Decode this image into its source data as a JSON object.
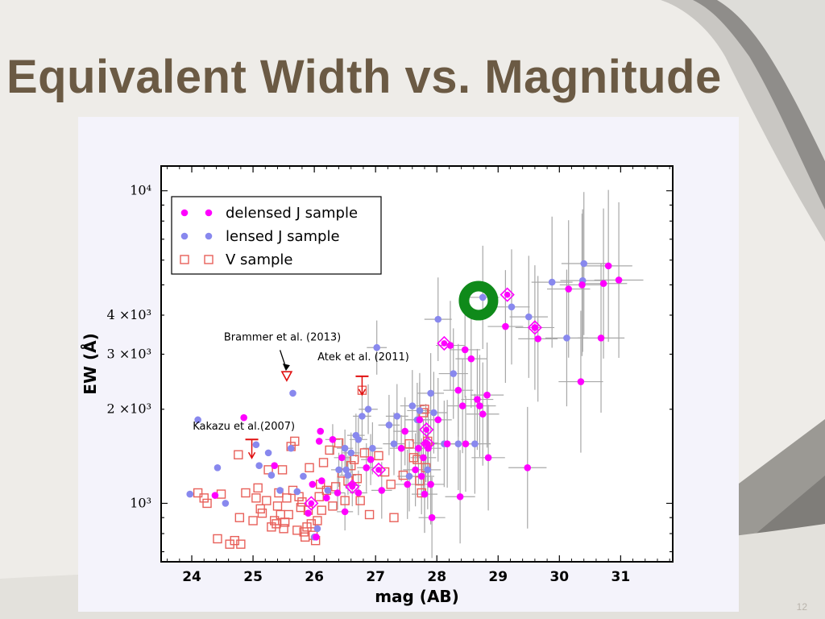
{
  "slide": {
    "title": "Equivalent Width vs. Magnitude",
    "number": "12"
  },
  "colors": {
    "title": "#6b5a44",
    "delensed": "#ff00ff",
    "lensed": "#8888ee",
    "vsample": "#e8605a",
    "errorbar": "#a8a8a8",
    "highlight_ring": "#0f8a1a",
    "limit_arrow": "#e01010",
    "panel": "#f4f3fb",
    "slide_bg": "#eeece8"
  },
  "chart_data": {
    "type": "scatter",
    "xlabel": "mag (AB)",
    "ylabel": "EW (Å)",
    "xlim": [
      23.5,
      31.85
    ],
    "ylim": [
      650,
      12000
    ],
    "yscale": "log",
    "xticks": [
      24,
      25,
      26,
      27,
      28,
      29,
      30,
      31
    ],
    "yticks": [
      {
        "value": 1000,
        "label": "10³"
      },
      {
        "value": 2000,
        "label": "2 ×10³"
      },
      {
        "value": 3000,
        "label": "3 ×10³"
      },
      {
        "value": 4000,
        "label": "4 ×10³"
      },
      {
        "value": 10000,
        "label": "10⁴"
      }
    ],
    "legend": {
      "position": "top-left",
      "entries": [
        "delensed J sample",
        "lensed J sample",
        "V sample"
      ]
    },
    "series": [
      {
        "name": "delensed J sample",
        "marker": "filled-circle",
        "points": [
          [
            24.38,
            1060
          ],
          [
            24.85,
            1880
          ],
          [
            25.35,
            1320
          ],
          [
            25.9,
            930
          ],
          [
            25.97,
            1150
          ],
          [
            26.03,
            780
          ],
          [
            26.08,
            1580
          ],
          [
            26.1,
            1700
          ],
          [
            26.12,
            1180
          ],
          [
            26.2,
            1040
          ],
          [
            26.3,
            1600
          ],
          [
            26.38,
            1080
          ],
          [
            26.45,
            1400
          ],
          [
            26.5,
            940
          ],
          [
            26.62,
            1140
          ],
          [
            26.72,
            1080
          ],
          [
            26.85,
            1300
          ],
          [
            26.92,
            1380
          ],
          [
            27.1,
            1100
          ],
          [
            27.42,
            1500
          ],
          [
            27.48,
            1700
          ],
          [
            27.52,
            1150
          ],
          [
            27.65,
            1280
          ],
          [
            27.7,
            1500
          ],
          [
            27.72,
            1850
          ],
          [
            27.75,
            1220
          ],
          [
            27.78,
            1400
          ],
          [
            27.8,
            1070
          ],
          [
            27.82,
            1560
          ],
          [
            27.86,
            1500
          ],
          [
            27.9,
            1150
          ],
          [
            27.92,
            900
          ],
          [
            28.02,
            1850
          ],
          [
            28.17,
            1550
          ],
          [
            28.22,
            3200
          ],
          [
            28.35,
            2300
          ],
          [
            28.38,
            1050
          ],
          [
            28.42,
            2050
          ],
          [
            28.46,
            3100
          ],
          [
            28.47,
            1550
          ],
          [
            28.56,
            2900
          ],
          [
            28.66,
            2150
          ],
          [
            28.7,
            2050
          ],
          [
            28.75,
            1930
          ],
          [
            28.82,
            2220
          ],
          [
            28.84,
            1400
          ],
          [
            29.12,
            3680
          ],
          [
            29.6,
            3650
          ],
          [
            29.65,
            3360
          ],
          [
            29.48,
            1300
          ],
          [
            30.15,
            4850
          ],
          [
            30.35,
            2450
          ],
          [
            30.37,
            5000
          ],
          [
            30.68,
            3380
          ],
          [
            30.72,
            5050
          ],
          [
            30.8,
            5750
          ],
          [
            30.97,
            5180
          ]
        ]
      },
      {
        "name": "lensed J sample",
        "marker": "filled-circle",
        "points": [
          [
            23.97,
            1070
          ],
          [
            24.1,
            1850
          ],
          [
            24.42,
            1300
          ],
          [
            24.55,
            1000
          ],
          [
            25.05,
            1540
          ],
          [
            25.1,
            1320
          ],
          [
            25.25,
            1450
          ],
          [
            25.3,
            1230
          ],
          [
            25.44,
            1100
          ],
          [
            25.62,
            1500
          ],
          [
            25.65,
            2250
          ],
          [
            25.72,
            1090
          ],
          [
            25.82,
            1220
          ],
          [
            26.0,
            780
          ],
          [
            26.05,
            830
          ],
          [
            26.22,
            1100
          ],
          [
            26.4,
            1280
          ],
          [
            26.5,
            1500
          ],
          [
            26.52,
            1280
          ],
          [
            26.55,
            1230
          ],
          [
            26.6,
            1450
          ],
          [
            26.68,
            1650
          ],
          [
            26.72,
            1600
          ],
          [
            26.78,
            1900
          ],
          [
            26.88,
            2000
          ],
          [
            26.95,
            1500
          ],
          [
            27.02,
            3150
          ],
          [
            27.22,
            1780
          ],
          [
            27.3,
            1550
          ],
          [
            27.35,
            1900
          ],
          [
            27.55,
            1220
          ],
          [
            27.6,
            2050
          ],
          [
            27.68,
            1850
          ],
          [
            27.72,
            1980
          ],
          [
            27.8,
            1070
          ],
          [
            27.85,
            1280
          ],
          [
            27.9,
            2250
          ],
          [
            27.95,
            1950
          ],
          [
            28.02,
            3880
          ],
          [
            28.12,
            1550
          ],
          [
            28.27,
            2600
          ],
          [
            28.35,
            1550
          ],
          [
            28.62,
            1550
          ],
          [
            28.75,
            4560
          ],
          [
            29.22,
            4250
          ],
          [
            29.5,
            3950
          ],
          [
            29.88,
            5100
          ],
          [
            30.12,
            3380
          ],
          [
            30.38,
            5160
          ],
          [
            30.4,
            5850
          ]
        ]
      },
      {
        "name": "V sample",
        "marker": "open-square",
        "points": [
          [
            24.1,
            1080
          ],
          [
            24.2,
            1040
          ],
          [
            24.25,
            1000
          ],
          [
            24.42,
            770
          ],
          [
            24.48,
            1070
          ],
          [
            24.62,
            740
          ],
          [
            24.7,
            760
          ],
          [
            24.76,
            1430
          ],
          [
            24.78,
            900
          ],
          [
            24.8,
            740
          ],
          [
            24.88,
            1080
          ],
          [
            25.0,
            880
          ],
          [
            25.05,
            1040
          ],
          [
            25.08,
            1120
          ],
          [
            25.12,
            960
          ],
          [
            25.15,
            930
          ],
          [
            25.22,
            1020
          ],
          [
            25.25,
            1280
          ],
          [
            25.3,
            840
          ],
          [
            25.35,
            880
          ],
          [
            25.38,
            860
          ],
          [
            25.4,
            980
          ],
          [
            25.42,
            1080
          ],
          [
            25.45,
            920
          ],
          [
            25.48,
            1280
          ],
          [
            25.5,
            830
          ],
          [
            25.52,
            870
          ],
          [
            25.55,
            1040
          ],
          [
            25.58,
            920
          ],
          [
            25.62,
            1520
          ],
          [
            25.65,
            1100
          ],
          [
            25.68,
            1580
          ],
          [
            25.72,
            820
          ],
          [
            25.75,
            1050
          ],
          [
            25.78,
            970
          ],
          [
            25.8,
            1010
          ],
          [
            25.83,
            810
          ],
          [
            25.85,
            780
          ],
          [
            25.88,
            840
          ],
          [
            25.9,
            950
          ],
          [
            25.92,
            1300
          ],
          [
            25.95,
            860
          ],
          [
            25.98,
            790
          ],
          [
            26.02,
            760
          ],
          [
            26.05,
            880
          ],
          [
            26.08,
            1050
          ],
          [
            26.1,
            1150
          ],
          [
            26.12,
            950
          ],
          [
            26.15,
            1350
          ],
          [
            26.2,
            1100
          ],
          [
            26.25,
            1480
          ],
          [
            26.3,
            980
          ],
          [
            26.35,
            1130
          ],
          [
            26.4,
            1560
          ],
          [
            26.45,
            1250
          ],
          [
            26.5,
            1020
          ],
          [
            26.55,
            1180
          ],
          [
            26.6,
            1320
          ],
          [
            26.65,
            1380
          ],
          [
            26.7,
            1200
          ],
          [
            26.75,
            1020
          ],
          [
            26.78,
            2300
          ],
          [
            26.82,
            1450
          ],
          [
            26.9,
            920
          ],
          [
            27.05,
            1420
          ],
          [
            27.15,
            1260
          ],
          [
            27.25,
            1150
          ],
          [
            27.3,
            900
          ],
          [
            27.45,
            1230
          ],
          [
            27.55,
            1550
          ],
          [
            27.62,
            1400
          ],
          [
            27.68,
            1380
          ],
          [
            27.72,
            1180
          ],
          [
            27.75,
            1080
          ],
          [
            27.78,
            1950
          ],
          [
            27.8,
            2000
          ],
          [
            27.82,
            1300
          ],
          [
            27.85,
            1580
          ]
        ]
      }
    ],
    "highlighted": [
      [
        25.95,
        1000
      ],
      [
        26.62,
        1130
      ],
      [
        27.05,
        1280
      ],
      [
        27.83,
        1720
      ],
      [
        27.85,
        1550
      ],
      [
        28.12,
        3250
      ],
      [
        29.15,
        4650
      ],
      [
        29.6,
        3650
      ]
    ],
    "ring": [
      28.68,
      4450
    ],
    "annotations": [
      {
        "text": "Brammer et al. (2013)",
        "x": 25.48,
        "y": 3320,
        "target": [
          25.55,
          2560
        ],
        "kind": "open-triangle"
      },
      {
        "text": "Atek et al. (2011)",
        "x": 26.8,
        "y": 2870,
        "target": [
          26.78,
          2550
        ],
        "kind": "upper-limit"
      },
      {
        "text": "Kakazu et al.(2007)",
        "x": 24.85,
        "y": 1720,
        "target": [
          24.98,
          1600
        ],
        "kind": "upper-limit"
      }
    ]
  }
}
